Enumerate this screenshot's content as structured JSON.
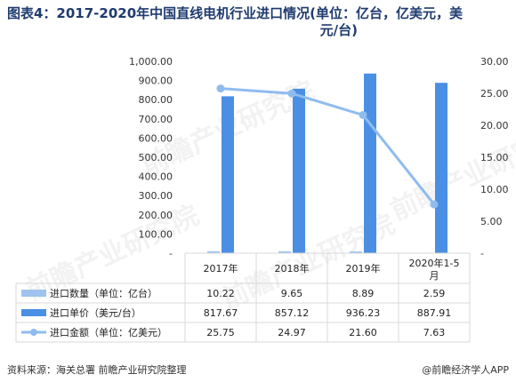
{
  "title_line1": "图表4：2017-2020年中国直线电机行业进口情况(单位：亿台，亿美元，美",
  "title_line2": "元/台)",
  "source": "资料来源：海关总署 前瞻产业研究院整理",
  "brand": "@前瞻经济学人APP",
  "watermark": "前瞻产业研究院",
  "colors": {
    "quantity": "#9ec3ef",
    "price": "#4a8fe3",
    "amount": "#8fbcef",
    "grid": "#d9d9d9",
    "title": "#1f3b6e"
  },
  "chart_data": {
    "type": "bar",
    "categories": [
      "2017年",
      "2018年",
      "2019年",
      "2020年1-5\n月"
    ],
    "category_display": [
      [
        "2017年"
      ],
      [
        "2018年"
      ],
      [
        "2019年"
      ],
      [
        "2020年1-5",
        "月"
      ]
    ],
    "left_axis": {
      "ylim": [
        0,
        1000
      ],
      "ticks": [
        "-",
        "100.00",
        "200.00",
        "300.00",
        "400.00",
        "500.00",
        "600.00",
        "700.00",
        "800.00",
        "900.00",
        "1,000.00"
      ]
    },
    "right_axis": {
      "ylim": [
        0,
        30
      ],
      "ticks": [
        "-",
        "5.00",
        "10.00",
        "15.00",
        "20.00",
        "25.00",
        "30.00"
      ]
    },
    "series": [
      {
        "name": "进口数量（单位：亿台）",
        "type": "bar",
        "axis": "left",
        "values": [
          10.22,
          9.65,
          8.89,
          2.59
        ],
        "labels": [
          "10.22",
          "9.65",
          "8.89",
          "2.59"
        ]
      },
      {
        "name": "进口单价（美元/台）",
        "type": "bar",
        "axis": "left",
        "values": [
          817.67,
          857.12,
          936.23,
          887.91
        ],
        "labels": [
          "817.67",
          "857.12",
          "936.23",
          "887.91"
        ]
      },
      {
        "name": "进口金额（单位：亿美元）",
        "type": "line",
        "axis": "right",
        "values": [
          25.75,
          24.97,
          21.6,
          7.63
        ],
        "labels": [
          "25.75",
          "24.97",
          "21.60",
          "7.63"
        ]
      }
    ],
    "grid": true,
    "legend": "data-table"
  }
}
